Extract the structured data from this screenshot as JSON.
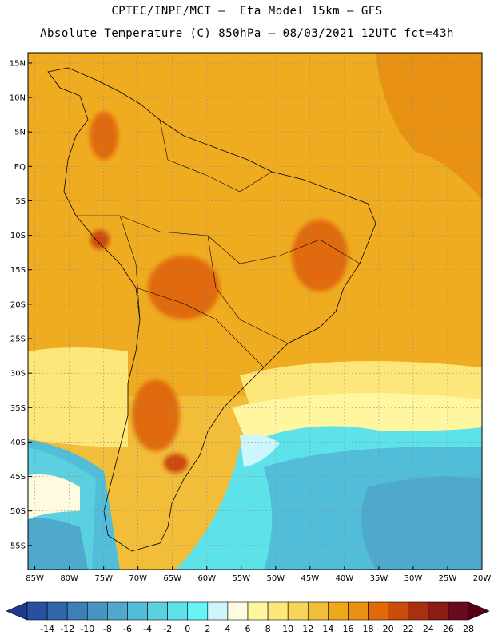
{
  "header": {
    "line1": "CPTEC/INPE/MCT –  Eta Model 15km – GFS",
    "line2": "Absolute Temperature (C) 850hPa – 08/03/2021 12UTC fct=43h"
  },
  "map": {
    "lat_ticks": [
      "15N",
      "10N",
      "5N",
      "EQ",
      "5S",
      "10S",
      "15S",
      "20S",
      "25S",
      "30S",
      "35S",
      "40S",
      "45S",
      "50S",
      "55S"
    ],
    "lon_ticks": [
      "85W",
      "80W",
      "75W",
      "70W",
      "65W",
      "60W",
      "55W",
      "50W",
      "45W",
      "40W",
      "35W",
      "30W",
      "25W",
      "20W"
    ],
    "lat_range": [
      -58.5,
      16.5
    ],
    "lon_range": [
      -86,
      -20
    ],
    "grid": true
  },
  "colorbar": {
    "labels": [
      "-14",
      "-12",
      "-10",
      "-8",
      "-6",
      "-4",
      "-2",
      "0",
      "2",
      "4",
      "6",
      "8",
      "10",
      "12",
      "14",
      "16",
      "18",
      "20",
      "22",
      "24",
      "26",
      "28"
    ],
    "colors": [
      "#1e3a8c",
      "#2950a0",
      "#3466ac",
      "#3f7fb8",
      "#4895c4",
      "#4fa9cc",
      "#52bdd8",
      "#5ad0e0",
      "#5ee2ea",
      "#66f4f6",
      "#ccf6fb",
      "#fffbe0",
      "#fff6a0",
      "#fde67a",
      "#f8d45a",
      "#f2bd38",
      "#efa81a",
      "#e99112",
      "#e06a08",
      "#cc4a0a",
      "#a8300e",
      "#8a1c14",
      "#6a0a1e",
      "#5a0016"
    ]
  }
}
